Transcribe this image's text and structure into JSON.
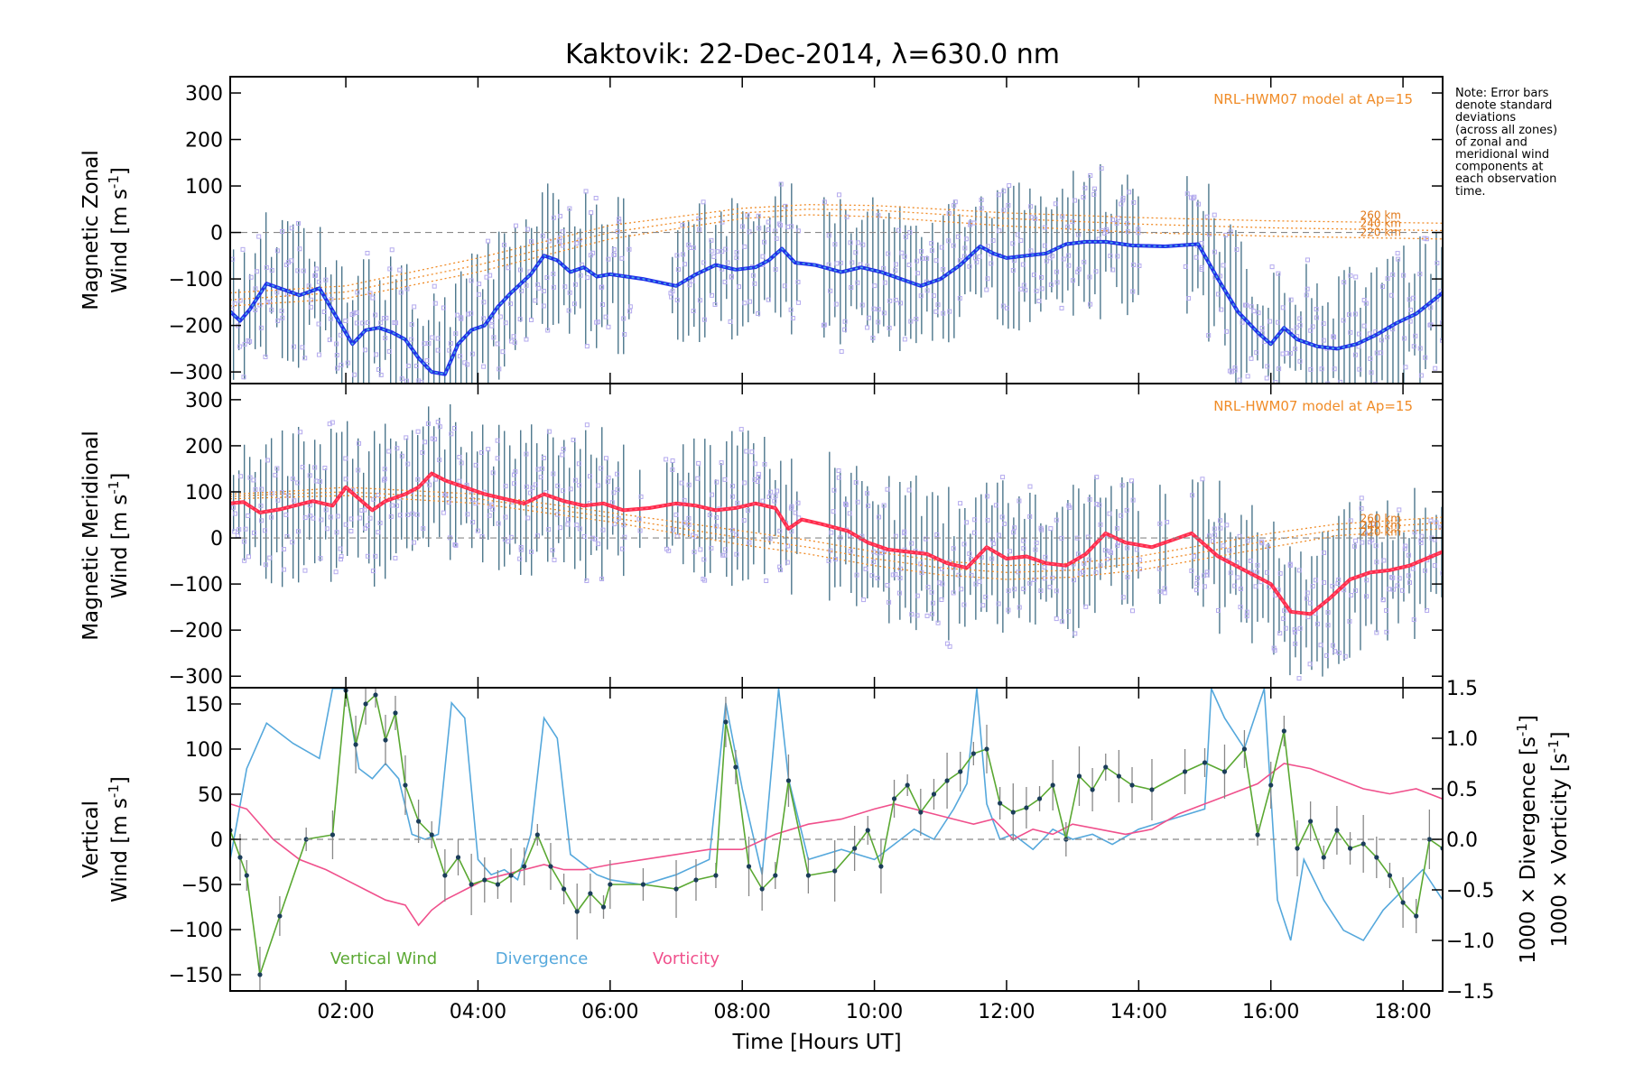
{
  "title": "Kaktovik: 22-Dec-2014, λ=630.0 nm",
  "note_lines": [
    "Note: Error bars",
    "denote standard",
    "deviations",
    "(across all zones)",
    "of zonal and",
    "meridional wind",
    "components at",
    "each observation",
    "time."
  ],
  "x_axis": {
    "label": "Time [Hours UT]",
    "range": [
      0.25,
      18.6
    ],
    "ticks": [
      2,
      4,
      6,
      8,
      10,
      12,
      14,
      16,
      18
    ],
    "tick_labels": [
      "02:00",
      "04:00",
      "06:00",
      "08:00",
      "10:00",
      "12:00",
      "14:00",
      "16:00",
      "18:00"
    ]
  },
  "colors": {
    "zonal": "#2030e8",
    "zonal_inner": "#4aa8e6",
    "meridional": "#ff2a4a",
    "meridional_inner": "#ff5a78",
    "vertical": "#5aa832",
    "divergence": "#55a8dc",
    "vorticity": "#f0508c",
    "hwm": "#f08c28",
    "errorbar": "#2d5f78",
    "scatter": "#b4aaee"
  },
  "chart_data": [
    {
      "type": "line",
      "name": "zonal-panel",
      "ylabel_line1": "Magnetic Zonal",
      "ylabel_line2": "Wind [m s",
      "ylabel_sup": "-1",
      "ylabel_end": "]",
      "ylim": [
        -325,
        335
      ],
      "yticks": [
        -300,
        -200,
        -100,
        0,
        100,
        200,
        300
      ],
      "ytick_labels": [
        "−300",
        "−200",
        "−100",
        "0",
        "100",
        "200",
        "300"
      ],
      "model_label": "NRL-HWM07 model at Ap=15",
      "altitude_labels": [
        "260 km",
        "240 km",
        "220 km"
      ],
      "series": {
        "x": [
          0.25,
          0.4,
          0.55,
          0.8,
          1.3,
          1.6,
          1.85,
          2.1,
          2.3,
          2.5,
          2.7,
          2.9,
          3.1,
          3.3,
          3.5,
          3.7,
          3.9,
          4.1,
          4.3,
          4.5,
          4.8,
          5.0,
          5.2,
          5.4,
          5.6,
          5.8,
          6.0,
          6.5,
          7.0,
          7.3,
          7.6,
          7.9,
          8.2,
          8.4,
          8.6,
          8.8,
          9.1,
          9.5,
          9.8,
          10.1,
          10.4,
          10.7,
          11.0,
          11.3,
          11.6,
          11.8,
          12.0,
          12.3,
          12.6,
          12.9,
          13.2,
          13.5,
          13.9,
          14.4,
          14.9,
          15.2,
          15.5,
          15.8,
          16.0,
          16.2,
          16.4,
          16.7,
          17.0,
          17.3,
          17.6,
          17.9,
          18.2,
          18.6
        ],
        "y": [
          -170,
          -190,
          -165,
          -110,
          -135,
          -120,
          -180,
          -240,
          -210,
          -205,
          -215,
          -230,
          -270,
          -300,
          -305,
          -240,
          -210,
          -200,
          -160,
          -130,
          -90,
          -50,
          -60,
          -85,
          -75,
          -95,
          -90,
          -100,
          -115,
          -90,
          -70,
          -80,
          -75,
          -60,
          -35,
          -65,
          -70,
          -85,
          -75,
          -85,
          -100,
          -115,
          -100,
          -70,
          -30,
          -45,
          -55,
          -50,
          -45,
          -25,
          -20,
          -20,
          -28,
          -30,
          -25,
          -100,
          -170,
          -215,
          -240,
          -205,
          -230,
          -245,
          -250,
          -240,
          -220,
          -195,
          -175,
          -130
        ]
      },
      "model": {
        "x": [
          0.25,
          2.0,
          4.0,
          6.0,
          8.0,
          9.0,
          10.0,
          12.0,
          14.0,
          16.0,
          18.6
        ],
        "y_260": [
          -130,
          -115,
          -55,
          15,
          52,
          60,
          58,
          42,
          32,
          25,
          20
        ],
        "y_240": [
          -145,
          -128,
          -70,
          0,
          42,
          50,
          48,
          30,
          18,
          10,
          4
        ],
        "y_220": [
          -158,
          -142,
          -85,
          -14,
          30,
          38,
          34,
          14,
          0,
          -8,
          -14
        ]
      }
    },
    {
      "type": "line",
      "name": "meridional-panel",
      "ylabel_line1": "Magnetic Meridional",
      "ylabel_line2": "Wind [m s",
      "ylabel_sup": "-1",
      "ylabel_end": "]",
      "ylim": [
        -325,
        335
      ],
      "yticks": [
        -300,
        -200,
        -100,
        0,
        100,
        200,
        300
      ],
      "ytick_labels": [
        "−300",
        "−200",
        "−100",
        "0",
        "100",
        "200",
        "300"
      ],
      "model_label": "NRL-HWM07 model at Ap=15",
      "altitude_labels": [
        "260 km",
        "240 km",
        "220 km"
      ],
      "series": {
        "x": [
          0.25,
          0.45,
          0.7,
          1.0,
          1.5,
          1.8,
          2.0,
          2.2,
          2.4,
          2.6,
          2.9,
          3.1,
          3.3,
          3.5,
          3.8,
          4.1,
          4.4,
          4.7,
          5.0,
          5.3,
          5.6,
          5.9,
          6.2,
          6.6,
          7.0,
          7.3,
          7.6,
          7.9,
          8.2,
          8.5,
          8.7,
          8.9,
          9.2,
          9.6,
          9.9,
          10.2,
          10.5,
          10.8,
          11.1,
          11.4,
          11.7,
          12.0,
          12.3,
          12.6,
          12.9,
          13.2,
          13.5,
          13.8,
          14.2,
          14.8,
          15.2,
          15.6,
          16.0,
          16.3,
          16.6,
          16.9,
          17.2,
          17.5,
          17.8,
          18.1,
          18.6
        ],
        "y": [
          75,
          78,
          55,
          62,
          80,
          70,
          110,
          85,
          60,
          80,
          95,
          110,
          140,
          125,
          110,
          95,
          85,
          75,
          95,
          80,
          70,
          75,
          60,
          65,
          75,
          70,
          60,
          65,
          75,
          65,
          20,
          40,
          30,
          15,
          -10,
          -25,
          -30,
          -35,
          -55,
          -65,
          -20,
          -45,
          -40,
          -55,
          -60,
          -35,
          10,
          -10,
          -20,
          10,
          -40,
          -70,
          -100,
          -160,
          -165,
          -130,
          -90,
          -75,
          -70,
          -60,
          -30
        ]
      },
      "model": {
        "x": [
          0.25,
          1.0,
          2.0,
          4.0,
          6.0,
          8.0,
          9.0,
          10.0,
          11.0,
          12.0,
          13.0,
          14.0,
          15.0,
          16.0,
          17.0,
          18.6
        ],
        "y_260": [
          95,
          100,
          110,
          95,
          55,
          15,
          -5,
          -30,
          -50,
          -60,
          -55,
          -40,
          -15,
          10,
          30,
          45
        ],
        "y_240": [
          90,
          95,
          100,
          85,
          45,
          0,
          -20,
          -45,
          -65,
          -75,
          -70,
          -55,
          -30,
          -5,
          18,
          33
        ],
        "y_220": [
          85,
          88,
          92,
          75,
          35,
          -15,
          -35,
          -60,
          -80,
          -90,
          -85,
          -70,
          -45,
          -20,
          5,
          20
        ]
      }
    },
    {
      "type": "line",
      "name": "vertical-panel",
      "ylabel_line1": "Vertical",
      "ylabel_line2": "Wind [m s",
      "ylabel_sup": "-1",
      "ylabel_end": "]",
      "ylim": [
        -168,
        168
      ],
      "yticks": [
        -150,
        -100,
        -50,
        0,
        50,
        100,
        150
      ],
      "ytick_labels": [
        "−150",
        "−100",
        "−50",
        "0",
        "50",
        "100",
        "150"
      ],
      "right_ylim": [
        -1.5,
        1.5
      ],
      "right_yticks": [
        -1.5,
        -1.0,
        -0.5,
        0.0,
        0.5,
        1.0,
        1.5
      ],
      "right_ytick_labels": [
        "−1.5",
        "−1.0",
        "−0.5",
        "0.0",
        "0.5",
        "1.0",
        "1.5"
      ],
      "right_label_div": "1000 × Divergence [s",
      "right_label_vort": "1000 × Vorticity [s",
      "right_label_sup": "-1",
      "right_label_end": "]",
      "legend": [
        "Vertical Wind",
        "Divergence",
        "Vorticity"
      ],
      "vertical": {
        "x": [
          0.25,
          0.4,
          0.5,
          0.7,
          1.0,
          1.4,
          1.8,
          2.0,
          2.15,
          2.3,
          2.45,
          2.6,
          2.75,
          2.9,
          3.1,
          3.3,
          3.5,
          3.7,
          3.9,
          4.1,
          4.3,
          4.5,
          4.7,
          4.9,
          5.1,
          5.3,
          5.5,
          5.7,
          5.9,
          6.0,
          6.5,
          7.0,
          7.3,
          7.6,
          7.75,
          7.9,
          8.1,
          8.3,
          8.5,
          8.7,
          9.0,
          9.4,
          9.7,
          9.9,
          10.1,
          10.3,
          10.5,
          10.7,
          10.9,
          11.1,
          11.3,
          11.5,
          11.7,
          11.9,
          12.1,
          12.3,
          12.5,
          12.7,
          12.9,
          13.1,
          13.3,
          13.5,
          13.7,
          13.9,
          14.2,
          14.7,
          15.0,
          15.3,
          15.6,
          15.8,
          16.0,
          16.2,
          16.4,
          16.6,
          16.8,
          17.0,
          17.2,
          17.4,
          17.6,
          17.8,
          18.0,
          18.2,
          18.4,
          18.6
        ],
        "y": [
          10,
          -20,
          -40,
          -150,
          -85,
          0,
          5,
          165,
          105,
          150,
          160,
          110,
          140,
          60,
          20,
          5,
          -40,
          -20,
          -50,
          -45,
          -50,
          -40,
          -30,
          5,
          -30,
          -55,
          -80,
          -60,
          -75,
          -50,
          -50,
          -55,
          -45,
          -40,
          130,
          80,
          -30,
          -55,
          -40,
          65,
          -40,
          -35,
          -10,
          10,
          -30,
          45,
          60,
          30,
          50,
          65,
          75,
          95,
          100,
          40,
          30,
          35,
          45,
          60,
          0,
          70,
          55,
          80,
          70,
          60,
          55,
          75,
          85,
          75,
          100,
          5,
          60,
          120,
          -10,
          20,
          -20,
          10,
          -10,
          -5,
          -20,
          -40,
          -70,
          -85,
          0,
          -10
        ]
      },
      "divergence": {
        "x": [
          0.25,
          0.5,
          0.8,
          1.2,
          1.6,
          1.8,
          2.0,
          2.2,
          2.4,
          2.6,
          2.8,
          3.0,
          3.2,
          3.4,
          3.6,
          3.8,
          4.0,
          4.2,
          4.4,
          4.6,
          4.8,
          5.0,
          5.2,
          5.4,
          5.6,
          5.8,
          6.0,
          6.5,
          7.0,
          7.5,
          7.75,
          8.0,
          8.3,
          8.55,
          8.7,
          9.0,
          9.5,
          10.0,
          10.3,
          10.6,
          10.9,
          11.2,
          11.4,
          11.55,
          11.7,
          11.9,
          12.1,
          12.4,
          12.7,
          13.0,
          13.3,
          13.6,
          14.0,
          14.5,
          15.0,
          15.1,
          15.3,
          15.6,
          15.9,
          16.1,
          16.3,
          16.5,
          16.8,
          17.1,
          17.4,
          17.7,
          18.0,
          18.3,
          18.6
        ],
        "y": [
          -0.2,
          0.7,
          1.15,
          0.95,
          0.8,
          1.5,
          1.5,
          0.7,
          0.6,
          0.75,
          0.6,
          0.05,
          0.0,
          0.05,
          1.35,
          1.2,
          -0.2,
          -0.35,
          -0.3,
          -0.4,
          0.05,
          1.2,
          1.0,
          -0.15,
          -0.25,
          -0.35,
          -0.4,
          -0.45,
          -0.35,
          -0.2,
          1.35,
          0.5,
          -0.35,
          1.5,
          0.6,
          -0.2,
          -0.1,
          -0.2,
          -0.05,
          0.1,
          0.0,
          0.3,
          0.55,
          1.5,
          0.35,
          0.0,
          0.05,
          -0.1,
          0.1,
          0.0,
          0.05,
          -0.05,
          0.1,
          0.2,
          0.3,
          1.5,
          1.2,
          0.9,
          1.5,
          -0.6,
          -1.0,
          -0.2,
          -0.6,
          -0.9,
          -1.0,
          -0.7,
          -0.5,
          -0.3,
          -0.6
        ]
      },
      "vorticity": {
        "x": [
          0.25,
          0.5,
          0.9,
          1.3,
          1.7,
          2.0,
          2.3,
          2.6,
          2.9,
          3.1,
          3.3,
          3.5,
          3.8,
          4.1,
          4.4,
          4.7,
          5.0,
          5.3,
          5.6,
          6.0,
          6.5,
          7.0,
          7.5,
          8.0,
          8.5,
          9.0,
          9.5,
          10.0,
          10.3,
          10.6,
          10.9,
          11.2,
          11.5,
          11.8,
          12.1,
          12.4,
          12.7,
          13.0,
          13.4,
          13.8,
          14.2,
          14.6,
          15.0,
          15.4,
          15.8,
          16.2,
          16.6,
          17.0,
          17.4,
          17.8,
          18.2,
          18.6
        ],
        "y": [
          0.35,
          0.3,
          0.0,
          -0.2,
          -0.3,
          -0.4,
          -0.5,
          -0.6,
          -0.65,
          -0.85,
          -0.7,
          -0.6,
          -0.5,
          -0.4,
          -0.35,
          -0.3,
          -0.25,
          -0.3,
          -0.3,
          -0.25,
          -0.2,
          -0.15,
          -0.1,
          -0.1,
          0.05,
          0.15,
          0.2,
          0.3,
          0.35,
          0.3,
          0.25,
          0.2,
          0.15,
          0.2,
          0.0,
          0.1,
          0.05,
          0.15,
          0.1,
          0.05,
          0.1,
          0.25,
          0.35,
          0.45,
          0.55,
          0.75,
          0.7,
          0.6,
          0.5,
          0.45,
          0.5,
          0.4
        ]
      }
    }
  ]
}
